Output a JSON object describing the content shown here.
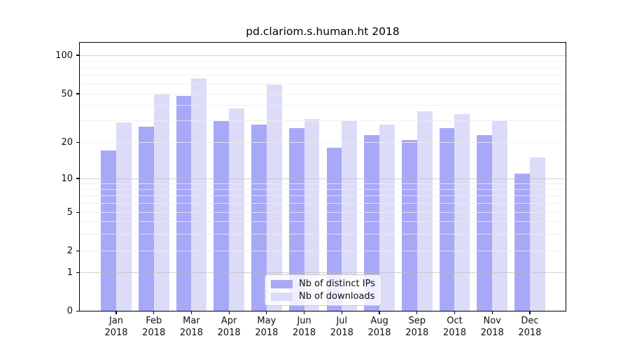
{
  "chart_data": {
    "type": "bar",
    "title": "pd.clariom.s.human.ht 2018",
    "categories": [
      "Jan 2018",
      "Feb 2018",
      "Mar 2018",
      "Apr 2018",
      "May 2018",
      "Jun 2018",
      "Jul 2018",
      "Aug 2018",
      "Sep 2018",
      "Oct 2018",
      "Nov 2018",
      "Dec 2018"
    ],
    "series": [
      {
        "name": "Nb of distinct IPs",
        "color": "#a8a8f8",
        "values": [
          17,
          27,
          48,
          30,
          28,
          26,
          18,
          23,
          21,
          26,
          23,
          11
        ]
      },
      {
        "name": "Nb of downloads",
        "color": "#dcdcf9",
        "values": [
          29,
          50,
          66,
          38,
          59,
          31,
          30,
          28,
          36,
          34,
          30,
          15
        ]
      }
    ],
    "xlabel": "",
    "ylabel": "",
    "yticks": [
      0,
      1,
      2,
      5,
      10,
      20,
      50,
      100
    ],
    "major_gridlines": [
      1,
      10,
      100
    ],
    "minor_gridlines": [
      2,
      3,
      4,
      5,
      6,
      7,
      8,
      9,
      20,
      30,
      40,
      50,
      60,
      70,
      80,
      90
    ],
    "yscale": "symlog",
    "ylim": [
      0,
      128
    ],
    "grid": true,
    "legend_position": "lower center"
  }
}
